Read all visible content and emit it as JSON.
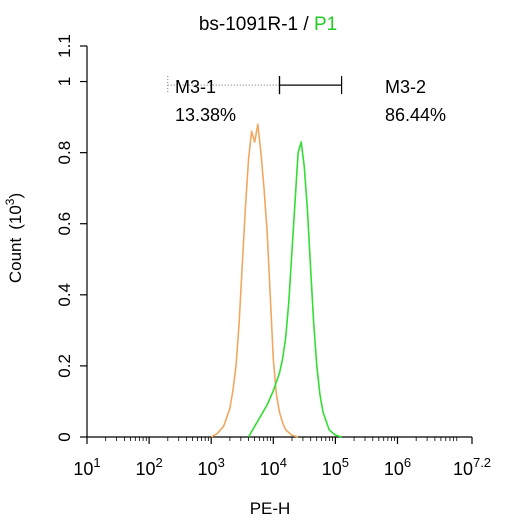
{
  "chart_data": {
    "type": "line",
    "title": {
      "prefix": "bs-1091R-1 / ",
      "highlight": "P1",
      "highlight_color": "#22cc22"
    },
    "xlabel": "PE-H",
    "ylabel": "Count",
    "ylabel_unit_base": "(10",
    "ylabel_unit_exp": "3",
    "ylabel_unit_close": ")",
    "x_scale": "log10",
    "xlim_log10": [
      1,
      7.2
    ],
    "ylim": [
      0,
      1.1
    ],
    "x_ticks": [
      {
        "base": "10",
        "exp": "1",
        "v": 1
      },
      {
        "base": "10",
        "exp": "2",
        "v": 2
      },
      {
        "base": "10",
        "exp": "3",
        "v": 3
      },
      {
        "base": "10",
        "exp": "4",
        "v": 4
      },
      {
        "base": "10",
        "exp": "5",
        "v": 5
      },
      {
        "base": "10",
        "exp": "6",
        "v": 6
      },
      {
        "base": "10",
        "exp": "7.2",
        "v": 7.2
      }
    ],
    "y_ticks": [
      "0",
      "0.2",
      "0.4",
      "0.6",
      "0.8",
      "1",
      "1.1"
    ],
    "y_tick_values": [
      0,
      0.2,
      0.4,
      0.6,
      0.8,
      1,
      1.1
    ],
    "series": [
      {
        "color": "#f0a860",
        "x_log10": [
          3.0,
          3.1,
          3.2,
          3.3,
          3.35,
          3.4,
          3.45,
          3.5,
          3.55,
          3.6,
          3.65,
          3.7,
          3.75,
          3.8,
          3.85,
          3.9,
          3.95,
          4.0,
          4.05,
          4.1,
          4.15,
          4.2,
          4.3,
          4.4
        ],
        "y": [
          0.0,
          0.01,
          0.03,
          0.08,
          0.13,
          0.2,
          0.32,
          0.48,
          0.64,
          0.78,
          0.86,
          0.83,
          0.88,
          0.8,
          0.7,
          0.58,
          0.4,
          0.22,
          0.12,
          0.07,
          0.04,
          0.02,
          0.005,
          0.0
        ]
      },
      {
        "color": "#33dd33",
        "x_log10": [
          3.6,
          3.7,
          3.8,
          3.9,
          4.0,
          4.1,
          4.15,
          4.2,
          4.25,
          4.3,
          4.35,
          4.4,
          4.45,
          4.5,
          4.55,
          4.6,
          4.65,
          4.7,
          4.75,
          4.8,
          4.9,
          5.0,
          5.1
        ],
        "y": [
          0.0,
          0.03,
          0.06,
          0.09,
          0.13,
          0.18,
          0.22,
          0.28,
          0.38,
          0.52,
          0.66,
          0.8,
          0.83,
          0.76,
          0.64,
          0.48,
          0.32,
          0.2,
          0.12,
          0.07,
          0.02,
          0.005,
          0.0
        ]
      }
    ],
    "markers": [
      {
        "name": "M3-1",
        "percent": "13.38%",
        "range_log10": [
          2.3,
          4.1
        ],
        "style": "dotted"
      },
      {
        "name": "M3-2",
        "percent": "86.44%",
        "range_log10": [
          4.1,
          5.1
        ],
        "style": "solid"
      }
    ],
    "marker_y": 0.99
  }
}
